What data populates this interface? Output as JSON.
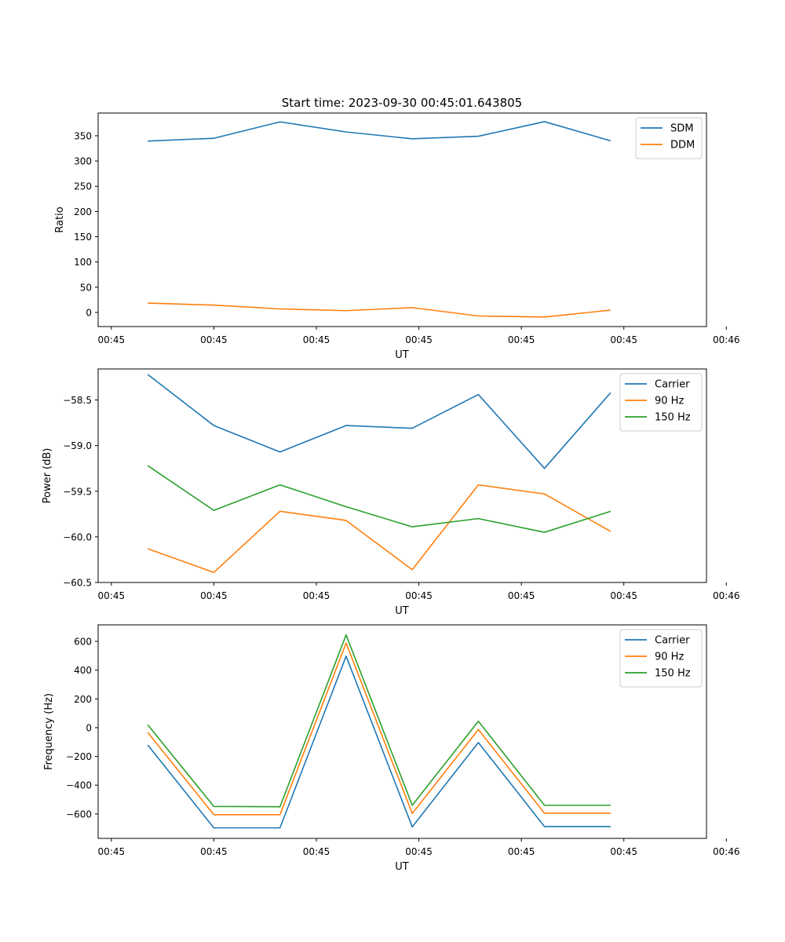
{
  "figure": {
    "title": "Start time: 2023-09-30 00:45:01.643805"
  },
  "chart_data": [
    {
      "type": "line",
      "title": "Start time: 2023-09-30 00:45:01.643805",
      "xlabel": "UT",
      "ylabel": "Ratio",
      "x_tick_labels": [
        "00:45",
        "00:45",
        "00:45",
        "00:45",
        "00:45",
        "00:45",
        "00:46"
      ],
      "x": [
        1,
        2,
        3,
        4,
        5,
        6,
        7,
        8
      ],
      "xlim": [
        0.25,
        9.45
      ],
      "ylim": [
        -28,
        395
      ],
      "y_ticks": [
        0,
        50,
        100,
        150,
        200,
        250,
        300,
        350
      ],
      "legend": "top-right",
      "series": [
        {
          "name": "SDM",
          "color": "#1f77b4",
          "values": [
            339.5,
            345,
            377.5,
            357.5,
            344,
            349,
            378,
            340
          ]
        },
        {
          "name": "DDM",
          "color": "#ff7f0e",
          "values": [
            18.5,
            14.5,
            7,
            3.5,
            9.5,
            -7,
            -9,
            4.5
          ]
        }
      ]
    },
    {
      "type": "line",
      "title": "",
      "xlabel": "UT",
      "ylabel": "Power (dB)",
      "x_tick_labels": [
        "00:45",
        "00:45",
        "00:45",
        "00:45",
        "00:45",
        "00:45",
        "00:46"
      ],
      "x": [
        1,
        2,
        3,
        4,
        5,
        6,
        7,
        8
      ],
      "xlim": [
        0.25,
        9.45
      ],
      "ylim": [
        -60.5,
        -58.16
      ],
      "y_ticks": [
        -60.5,
        -60.0,
        -59.5,
        -59.0,
        -58.5
      ],
      "y_tick_labels": [
        "−60.5",
        "−60.0",
        "−59.5",
        "−59.0",
        "−58.5"
      ],
      "legend": "top-right",
      "series": [
        {
          "name": "Carrier",
          "color": "#1f77b4",
          "values": [
            -58.22,
            -58.78,
            -59.07,
            -58.78,
            -58.81,
            -58.44,
            -59.25,
            -58.42
          ]
        },
        {
          "name": "90 Hz",
          "color": "#ff7f0e",
          "values": [
            -60.13,
            -60.39,
            -59.72,
            -59.82,
            -60.36,
            -59.43,
            -59.53,
            -59.94
          ]
        },
        {
          "name": "150 Hz",
          "color": "#2ca02c",
          "values": [
            -59.22,
            -59.71,
            -59.43,
            -59.67,
            -59.89,
            -59.8,
            -59.95,
            -59.72
          ]
        }
      ]
    },
    {
      "type": "line",
      "title": "",
      "xlabel": "UT",
      "ylabel": "Frequency (Hz)",
      "x_tick_labels": [
        "00:45",
        "00:45",
        "00:45",
        "00:45",
        "00:45",
        "00:45",
        "00:46"
      ],
      "x": [
        1,
        2,
        3,
        4,
        5,
        6,
        7,
        8
      ],
      "xlim": [
        0.25,
        9.45
      ],
      "ylim": [
        -770,
        715
      ],
      "y_ticks": [
        -600,
        -400,
        -200,
        0,
        200,
        400,
        600
      ],
      "y_tick_labels": [
        "−600",
        "−400",
        "−200",
        "0",
        "200",
        "400",
        "600"
      ],
      "legend": "top-right",
      "series": [
        {
          "name": "Carrier",
          "color": "#1f77b4",
          "values": [
            -120,
            -697,
            -697,
            497,
            -690,
            -103,
            -688,
            -688
          ]
        },
        {
          "name": "90 Hz",
          "color": "#ff7f0e",
          "values": [
            -33,
            -605,
            -605,
            588,
            -597,
            -13,
            -595,
            -595
          ]
        },
        {
          "name": "150 Hz",
          "color": "#2ca02c",
          "values": [
            20,
            -548,
            -550,
            645,
            -540,
            45,
            -540,
            -540
          ]
        }
      ]
    }
  ]
}
